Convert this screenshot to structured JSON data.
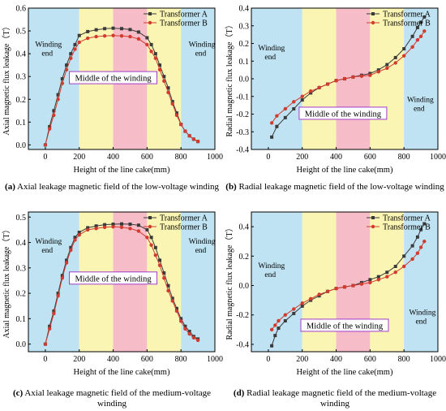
{
  "charts": [
    {
      "id": "a",
      "caption_tag": "(a)",
      "caption": "Axial leakage magnetic field of the low-voltage winding",
      "chart_data": {
        "type": "line",
        "xlabel": "Height of the line cake(mm)",
        "ylabel": "Axial magnetic flux leakage（T）",
        "xlim": [
          -100,
          1000
        ],
        "ylim": [
          -0.02,
          0.6
        ],
        "xticks": [
          0,
          200,
          400,
          600,
          800,
          1000
        ],
        "yticks": [
          0.0,
          0.1,
          0.2,
          0.3,
          0.4,
          0.5,
          0.6
        ],
        "ytick_labels": [
          "0.0",
          "0.1",
          "0.2",
          "0.3",
          "0.4",
          "0.5",
          "0.6"
        ],
        "legend_position": "top-right",
        "regions": [
          {
            "from": -100,
            "to": 200,
            "color": "#bfe3f2",
            "label": "Winding end",
            "label_x": -60,
            "label_y": 0.43
          },
          {
            "from": 200,
            "to": 400,
            "color": "#fbf5b4",
            "label": "",
            "label_x": 0,
            "label_y": 0
          },
          {
            "from": 400,
            "to": 600,
            "color": "#f6bcc8",
            "label": "",
            "label_x": 0,
            "label_y": 0
          },
          {
            "from": 600,
            "to": 800,
            "color": "#fbf5b4",
            "label": "",
            "label_x": 0,
            "label_y": 0
          },
          {
            "from": 800,
            "to": 1000,
            "color": "#bfe3f2",
            "label": "Winding end",
            "label_x": 845,
            "label_y": 0.43
          }
        ],
        "middle_label": {
          "text": "Middle of the winding",
          "x": 400,
          "y": 0.295
        },
        "series": [
          {
            "name": "Transformer A",
            "color": "#3a3a3a",
            "marker": "square",
            "x": [
              0,
              25,
              50,
              75,
              100,
              125,
              150,
              175,
              200,
              250,
              300,
              350,
              400,
              450,
              500,
              550,
              600,
              625,
              650,
              675,
              700,
              725,
              750,
              775,
              800,
              825,
              850,
              875,
              900
            ],
            "y": [
              0.0,
              0.08,
              0.15,
              0.22,
              0.29,
              0.35,
              0.4,
              0.44,
              0.48,
              0.497,
              0.505,
              0.51,
              0.512,
              0.51,
              0.506,
              0.495,
              0.47,
              0.44,
              0.4,
              0.35,
              0.3,
              0.25,
              0.19,
              0.14,
              0.09,
              0.06,
              0.04,
              0.025,
              0.015
            ]
          },
          {
            "name": "Transformer B",
            "color": "#d23b2f",
            "marker": "circle",
            "x": [
              0,
              25,
              50,
              75,
              100,
              125,
              150,
              175,
              200,
              250,
              300,
              350,
              400,
              450,
              500,
              550,
              600,
              625,
              650,
              675,
              700,
              725,
              750,
              775,
              800,
              825,
              850,
              875,
              900
            ],
            "y": [
              0.0,
              0.07,
              0.13,
              0.2,
              0.27,
              0.33,
              0.38,
              0.42,
              0.45,
              0.468,
              0.475,
              0.478,
              0.48,
              0.478,
              0.475,
              0.465,
              0.44,
              0.41,
              0.38,
              0.33,
              0.28,
              0.23,
              0.18,
              0.13,
              0.09,
              0.06,
              0.04,
              0.025,
              0.015
            ]
          }
        ]
      }
    },
    {
      "id": "b",
      "caption_tag": "(b)",
      "caption": "Radial leakage magnetic field of the low-voltage winding",
      "chart_data": {
        "type": "line",
        "xlabel": "Height of the line cake(mm)",
        "ylabel": "Radial magnetic flux leakage（T）",
        "xlim": [
          -100,
          1000
        ],
        "ylim": [
          -0.4,
          0.4
        ],
        "xticks": [
          0,
          200,
          400,
          600,
          800,
          1000
        ],
        "yticks": [
          -0.4,
          -0.3,
          -0.2,
          -0.1,
          0.0,
          0.1,
          0.2,
          0.3,
          0.4
        ],
        "ytick_labels": [
          "-0.4",
          "-0.3",
          "-0.2",
          "-0.1",
          "0.0",
          "0.1",
          "0.2",
          "0.3",
          "0.4"
        ],
        "legend_position": "top-right",
        "regions": [
          {
            "from": -100,
            "to": 200,
            "color": "#bfe3f2",
            "label": "Winding end",
            "label_x": -60,
            "label_y": 0.16
          },
          {
            "from": 200,
            "to": 400,
            "color": "#fbf5b4",
            "label": "",
            "label_x": 0,
            "label_y": 0
          },
          {
            "from": 400,
            "to": 600,
            "color": "#f6bcc8",
            "label": "",
            "label_x": 0,
            "label_y": 0
          },
          {
            "from": 600,
            "to": 800,
            "color": "#fbf5b4",
            "label": "",
            "label_x": 0,
            "label_y": 0
          },
          {
            "from": 800,
            "to": 1000,
            "color": "#bfe3f2",
            "label": "Winding end",
            "label_x": 818,
            "label_y": -0.13
          }
        ],
        "middle_label": {
          "text": "Middle of the winding",
          "x": 440,
          "y": -0.195
        },
        "series": [
          {
            "name": "Transformer A",
            "color": "#3a3a3a",
            "marker": "square",
            "x": [
              20,
              50,
              100,
              150,
              200,
              250,
              300,
              350,
              400,
              450,
              500,
              550,
              600,
              650,
              700,
              750,
              800,
              850,
              880,
              900,
              920
            ],
            "y": [
              -0.33,
              -0.27,
              -0.22,
              -0.17,
              -0.12,
              -0.08,
              -0.05,
              -0.03,
              -0.01,
              0.0,
              0.01,
              0.02,
              0.03,
              0.05,
              0.08,
              0.12,
              0.17,
              0.24,
              0.29,
              0.32,
              0.35
            ]
          },
          {
            "name": "Transformer B",
            "color": "#d23b2f",
            "marker": "circle",
            "x": [
              20,
              50,
              100,
              150,
              200,
              250,
              300,
              350,
              400,
              450,
              500,
              550,
              600,
              650,
              700,
              750,
              800,
              850,
              880,
              900,
              920
            ],
            "y": [
              -0.25,
              -0.21,
              -0.17,
              -0.13,
              -0.1,
              -0.07,
              -0.05,
              -0.03,
              -0.01,
              0.0,
              0.01,
              0.015,
              0.02,
              0.04,
              0.06,
              0.09,
              0.13,
              0.18,
              0.22,
              0.24,
              0.27
            ]
          }
        ]
      }
    },
    {
      "id": "c",
      "caption_tag": "(c)",
      "caption": "Axial leakage magnetic field of the medium-voltage winding",
      "chart_data": {
        "type": "line",
        "xlabel": "Height of the line cake(mm)",
        "ylabel": "Axial magnetic flux leakage（T）",
        "xlim": [
          -100,
          1000
        ],
        "ylim": [
          -0.03,
          0.52
        ],
        "xticks": [
          0,
          200,
          400,
          600,
          800,
          1000
        ],
        "yticks": [
          0.0,
          0.1,
          0.2,
          0.3,
          0.4,
          0.5
        ],
        "ytick_labels": [
          "0.0",
          "0.1",
          "0.2",
          "0.3",
          "0.4",
          "0.5"
        ],
        "legend_position": "top-right",
        "regions": [
          {
            "from": -100,
            "to": 200,
            "color": "#bfe3f2",
            "label": "Winding end",
            "label_x": -60,
            "label_y": 0.395
          },
          {
            "from": 200,
            "to": 400,
            "color": "#fbf5b4",
            "label": "",
            "label_x": 0,
            "label_y": 0
          },
          {
            "from": 400,
            "to": 600,
            "color": "#f6bcc8",
            "label": "",
            "label_x": 0,
            "label_y": 0
          },
          {
            "from": 600,
            "to": 800,
            "color": "#fbf5b4",
            "label": "",
            "label_x": 0,
            "label_y": 0
          },
          {
            "from": 800,
            "to": 1000,
            "color": "#bfe3f2",
            "label": "Winding end",
            "label_x": 845,
            "label_y": 0.395
          }
        ],
        "middle_label": {
          "text": "Middle of the winding",
          "x": 400,
          "y": 0.26
        },
        "series": [
          {
            "name": "Transformer A",
            "color": "#3a3a3a",
            "marker": "square",
            "x": [
              0,
              25,
              50,
              75,
              100,
              125,
              150,
              175,
              200,
              250,
              300,
              350,
              400,
              450,
              500,
              550,
              600,
              625,
              650,
              675,
              700,
              725,
              750,
              775,
              800,
              825,
              850,
              875,
              900
            ],
            "y": [
              0.0,
              0.07,
              0.13,
              0.2,
              0.27,
              0.33,
              0.38,
              0.42,
              0.44,
              0.458,
              0.465,
              0.47,
              0.472,
              0.473,
              0.472,
              0.468,
              0.45,
              0.42,
              0.38,
              0.33,
              0.28,
              0.23,
              0.18,
              0.14,
              0.1,
              0.07,
              0.05,
              0.03,
              0.02
            ]
          },
          {
            "name": "Transformer B",
            "color": "#d23b2f",
            "marker": "circle",
            "x": [
              0,
              25,
              50,
              75,
              100,
              125,
              150,
              175,
              200,
              250,
              300,
              350,
              400,
              450,
              500,
              550,
              600,
              625,
              650,
              675,
              700,
              725,
              750,
              775,
              800,
              825,
              850,
              875,
              900
            ],
            "y": [
              0.0,
              0.06,
              0.12,
              0.19,
              0.26,
              0.32,
              0.37,
              0.41,
              0.43,
              0.45,
              0.455,
              0.46,
              0.462,
              0.46,
              0.455,
              0.445,
              0.42,
              0.39,
              0.35,
              0.31,
              0.26,
              0.21,
              0.17,
              0.13,
              0.09,
              0.06,
              0.04,
              0.025,
              0.015
            ]
          }
        ]
      }
    },
    {
      "id": "d",
      "caption_tag": "(d)",
      "caption": "Radial leakage magnetic field of the medium-voltage winding",
      "chart_data": {
        "type": "line",
        "xlabel": "Height of the line cake(mm)",
        "ylabel": "Radial magnetic flux leakage（T）",
        "xlim": [
          -100,
          1000
        ],
        "ylim": [
          -0.45,
          0.5
        ],
        "xticks": [
          0,
          200,
          400,
          600,
          800,
          1000
        ],
        "yticks": [
          -0.4,
          -0.2,
          0.0,
          0.2,
          0.4
        ],
        "ytick_labels": [
          "-0.4",
          "-0.2",
          "0.0",
          "0.2",
          "0.4"
        ],
        "legend_position": "top-right",
        "regions": [
          {
            "from": -100,
            "to": 200,
            "color": "#bfe3f2",
            "label": "Winding end",
            "label_x": -60,
            "label_y": 0.12
          },
          {
            "from": 200,
            "to": 400,
            "color": "#fbf5b4",
            "label": "",
            "label_x": 0,
            "label_y": 0
          },
          {
            "from": 400,
            "to": 600,
            "color": "#f6bcc8",
            "label": "",
            "label_x": 0,
            "label_y": 0
          },
          {
            "from": 600,
            "to": 800,
            "color": "#fbf5b4",
            "label": "",
            "label_x": 0,
            "label_y": 0
          },
          {
            "from": 800,
            "to": 1000,
            "color": "#bfe3f2",
            "label": "Winding end",
            "label_x": 830,
            "label_y": -0.2
          }
        ],
        "middle_label": {
          "text": "Middle of the winding",
          "x": 450,
          "y": -0.27
        },
        "series": [
          {
            "name": "Transformer A",
            "color": "#3a3a3a",
            "marker": "square",
            "x": [
              20,
              40,
              60,
              100,
              150,
              200,
              250,
              300,
              350,
              400,
              450,
              500,
              550,
              600,
              650,
              700,
              750,
              800,
              850,
              880,
              900,
              920
            ],
            "y": [
              -0.41,
              -0.34,
              -0.29,
              -0.24,
              -0.19,
              -0.14,
              -0.1,
              -0.07,
              -0.04,
              -0.02,
              -0.01,
              0.0,
              0.02,
              0.04,
              0.06,
              0.09,
              0.13,
              0.2,
              0.27,
              0.33,
              0.38,
              0.42
            ]
          },
          {
            "name": "Transformer B",
            "color": "#d23b2f",
            "marker": "circle",
            "x": [
              20,
              40,
              60,
              100,
              150,
              200,
              250,
              300,
              350,
              400,
              450,
              500,
              550,
              600,
              650,
              700,
              750,
              800,
              850,
              880,
              900,
              920
            ],
            "y": [
              -0.3,
              -0.27,
              -0.24,
              -0.2,
              -0.16,
              -0.12,
              -0.09,
              -0.06,
              -0.04,
              -0.02,
              -0.01,
              0.0,
              0.01,
              0.02,
              0.04,
              0.06,
              0.09,
              0.13,
              0.18,
              0.22,
              0.26,
              0.3
            ]
          }
        ]
      }
    }
  ]
}
